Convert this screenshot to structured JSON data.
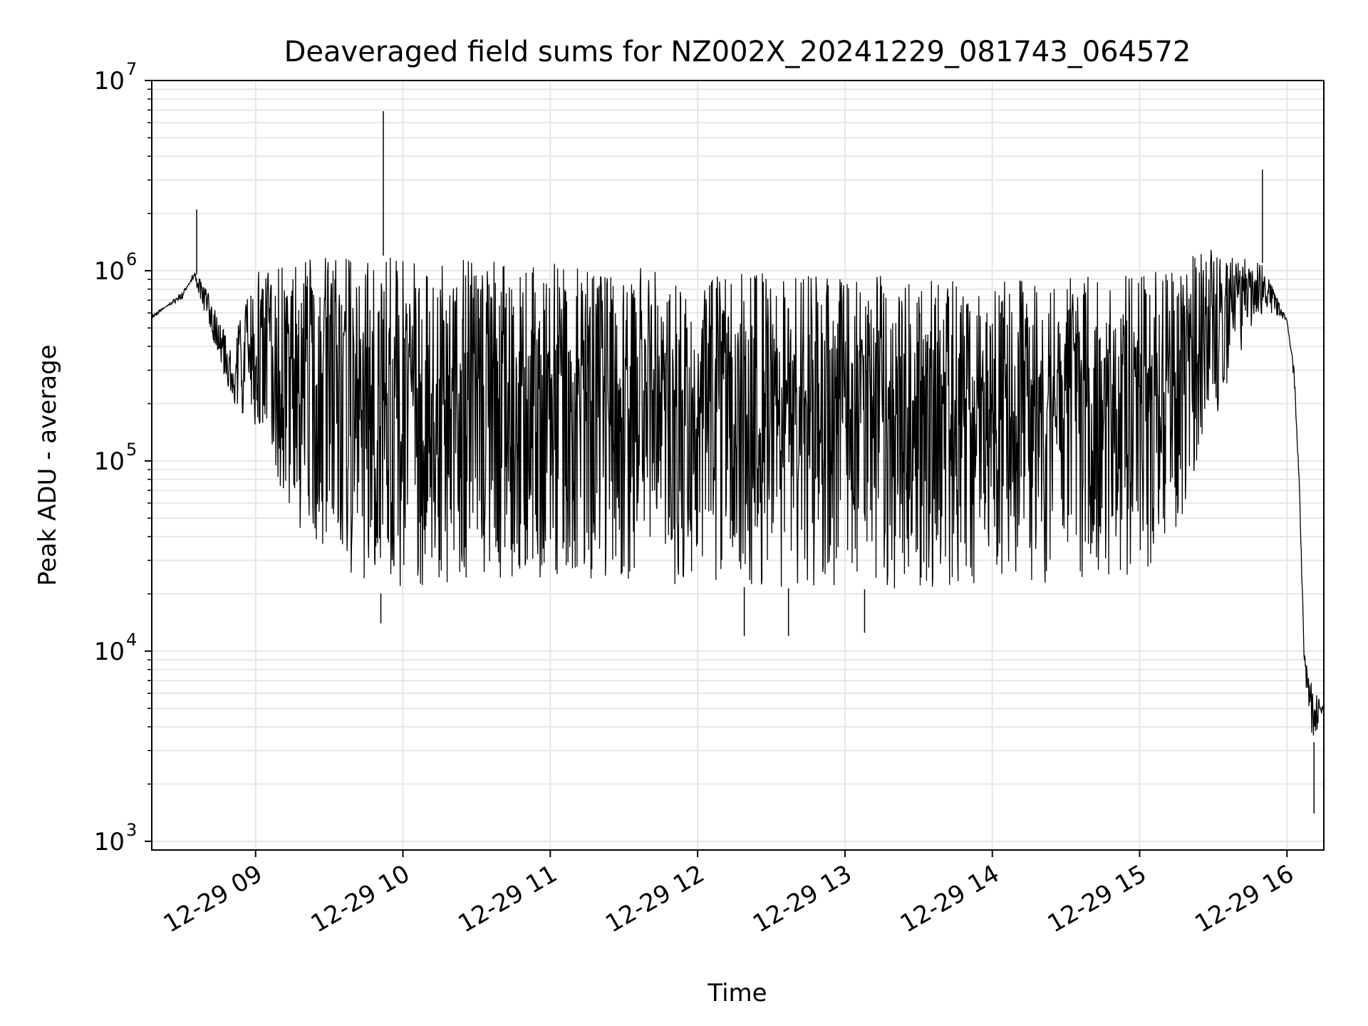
{
  "chart_data": {
    "type": "line",
    "title": "Deaveraged field sums for NZ002X_20241229_081743_064572",
    "xlabel": "Time",
    "ylabel": "Peak ADU - average",
    "yscale": "log",
    "ylim": [
      900,
      10000000
    ],
    "y_ticks": [
      {
        "value": 1000,
        "base": "10",
        "exp": "3"
      },
      {
        "value": 10000,
        "base": "10",
        "exp": "4"
      },
      {
        "value": 100000,
        "base": "10",
        "exp": "5"
      },
      {
        "value": 1000000,
        "base": "10",
        "exp": "6"
      },
      {
        "value": 10000000,
        "base": "10",
        "exp": "7"
      }
    ],
    "xlim": [
      "2024-12-29T08:17:43",
      "2024-12-29T16:15:00"
    ],
    "x_ticks": [
      {
        "value": "2024-12-29T09:00",
        "label": "12-29 09"
      },
      {
        "value": "2024-12-29T10:00",
        "label": "12-29 10"
      },
      {
        "value": "2024-12-29T11:00",
        "label": "12-29 11"
      },
      {
        "value": "2024-12-29T12:00",
        "label": "12-29 12"
      },
      {
        "value": "2024-12-29T13:00",
        "label": "12-29 13"
      },
      {
        "value": "2024-12-29T14:00",
        "label": "12-29 14"
      },
      {
        "value": "2024-12-29T15:00",
        "label": "12-29 15"
      },
      {
        "value": "2024-12-29T16:00",
        "label": "12-29 16"
      }
    ],
    "grid": true,
    "line_color": "#000000",
    "grid_color": "#e6e6e6",
    "upper_envelope": [
      {
        "t": "2024-12-29T08:17:43",
        "y": 600000
      },
      {
        "t": "2024-12-29T08:30",
        "y": 700000
      },
      {
        "t": "2024-12-29T08:35",
        "y": 1000000
      },
      {
        "t": "2024-12-29T08:40",
        "y": 800000
      },
      {
        "t": "2024-12-29T08:50",
        "y": 400000
      },
      {
        "t": "2024-12-29T09:00",
        "y": 1000000
      },
      {
        "t": "2024-12-29T09:30",
        "y": 1200000
      },
      {
        "t": "2024-12-29T10:00",
        "y": 1200000
      },
      {
        "t": "2024-12-29T11:00",
        "y": 1100000
      },
      {
        "t": "2024-12-29T12:00",
        "y": 1000000
      },
      {
        "t": "2024-12-29T13:00",
        "y": 950000
      },
      {
        "t": "2024-12-29T14:00",
        "y": 900000
      },
      {
        "t": "2024-12-29T14:40",
        "y": 950000
      },
      {
        "t": "2024-12-29T15:00",
        "y": 1000000
      },
      {
        "t": "2024-12-29T15:30",
        "y": 1300000
      },
      {
        "t": "2024-12-29T15:50",
        "y": 1100000
      },
      {
        "t": "2024-12-29T16:00",
        "y": 550000
      },
      {
        "t": "2024-12-29T16:03",
        "y": 300000
      },
      {
        "t": "2024-12-29T16:05",
        "y": 80000
      },
      {
        "t": "2024-12-29T16:07",
        "y": 10000
      },
      {
        "t": "2024-12-29T16:10",
        "y": 7000
      },
      {
        "t": "2024-12-29T16:15",
        "y": 5000
      }
    ],
    "lower_envelope": [
      {
        "t": "2024-12-29T08:17:43",
        "y": 550000
      },
      {
        "t": "2024-12-29T08:35",
        "y": 900000
      },
      {
        "t": "2024-12-29T08:45",
        "y": 350000
      },
      {
        "t": "2024-12-29T08:50",
        "y": 200000
      },
      {
        "t": "2024-12-29T09:00",
        "y": 150000
      },
      {
        "t": "2024-12-29T09:15",
        "y": 50000
      },
      {
        "t": "2024-12-29T09:30",
        "y": 28000
      },
      {
        "t": "2024-12-29T09:50",
        "y": 20000
      },
      {
        "t": "2024-12-29T10:30",
        "y": 24000
      },
      {
        "t": "2024-12-29T12:00",
        "y": 22000
      },
      {
        "t": "2024-12-29T13:00",
        "y": 21000
      },
      {
        "t": "2024-12-29T14:00",
        "y": 22000
      },
      {
        "t": "2024-12-29T14:50",
        "y": 24000
      },
      {
        "t": "2024-12-29T15:00",
        "y": 25000
      },
      {
        "t": "2024-12-29T15:15",
        "y": 40000
      },
      {
        "t": "2024-12-29T15:30",
        "y": 150000
      },
      {
        "t": "2024-12-29T15:40",
        "y": 350000
      },
      {
        "t": "2024-12-29T15:50",
        "y": 600000
      },
      {
        "t": "2024-12-29T16:00",
        "y": 550000
      },
      {
        "t": "2024-12-29T16:03",
        "y": 250000
      },
      {
        "t": "2024-12-29T16:05",
        "y": 70000
      },
      {
        "t": "2024-12-29T16:07",
        "y": 8000
      },
      {
        "t": "2024-12-29T16:10",
        "y": 3000
      },
      {
        "t": "2024-12-29T16:15",
        "y": 5000
      }
    ],
    "spikes": [
      {
        "t": "2024-12-29T08:36",
        "y": 2100000
      },
      {
        "t": "2024-12-29T09:52",
        "y": 6900000
      },
      {
        "t": "2024-12-29T15:50",
        "y": 3400000
      },
      {
        "t": "2024-12-29T09:51",
        "y": 14000
      },
      {
        "t": "2024-12-29T12:19",
        "y": 12000
      },
      {
        "t": "2024-12-29T12:37",
        "y": 12000
      },
      {
        "t": "2024-12-29T13:08",
        "y": 12500
      },
      {
        "t": "2024-12-29T16:11",
        "y": 1400
      }
    ]
  }
}
